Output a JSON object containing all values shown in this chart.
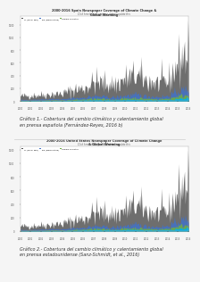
{
  "title1_line1": "2000-2016 Spain Newspaper Coverage of Climate Change &",
  "title1_line2": "Global Warming",
  "subtitle1": "Click here to load your own data to update this",
  "caption1": "Gráfico 1.- Cobertura del cambio climático y calentamiento global\nen prensa española (Fernández-Reyes, 2016 b)",
  "title2_line1": "2000-2016 United States Newspaper Coverage of Climate Change",
  "title2_line2": "& Global Warming",
  "subtitle2": "Click here to load your own data to update this",
  "caption2": "Gráfico 2.- Cobertura del cambio climático y calentamiento global\nen prensa estadounidense (Sanz-Schmidt, et al., 2016)",
  "bg_color": "#f0f0f0",
  "chart_bg": "#ffffff",
  "colors": {
    "black": "#222222",
    "blue": "#4472c4",
    "green": "#70ad47",
    "cyan": "#00b0f0",
    "yellow": "#ffd700",
    "red": "#ff0000"
  },
  "years": [
    2000,
    2001,
    2002,
    2003,
    2004,
    2005,
    2006,
    2007,
    2008,
    2009,
    2010,
    2011,
    2012,
    2013,
    2014,
    2015,
    2016
  ],
  "chart1_black": [
    80,
    90,
    100,
    110,
    120,
    180,
    200,
    300,
    280,
    260,
    350,
    400,
    320,
    280,
    300,
    600,
    800
  ],
  "chart1_blue": [
    20,
    25,
    30,
    35,
    30,
    50,
    60,
    80,
    70,
    60,
    90,
    100,
    80,
    70,
    80,
    150,
    200
  ],
  "chart1_green": [
    10,
    12,
    15,
    18,
    15,
    25,
    30,
    40,
    35,
    30,
    45,
    50,
    40,
    35,
    40,
    80,
    100
  ],
  "chart1_cyan": [
    5,
    6,
    7,
    8,
    7,
    12,
    15,
    20,
    18,
    15,
    22,
    25,
    20,
    18,
    20,
    40,
    50
  ],
  "chart2_black": [
    70,
    80,
    90,
    100,
    110,
    160,
    180,
    280,
    260,
    240,
    320,
    380,
    300,
    260,
    280,
    560,
    750
  ],
  "chart2_blue": [
    18,
    22,
    27,
    32,
    27,
    45,
    55,
    75,
    65,
    55,
    85,
    95,
    75,
    65,
    75,
    140,
    190
  ],
  "chart2_green": [
    8,
    10,
    12,
    15,
    12,
    22,
    27,
    37,
    32,
    27,
    42,
    47,
    37,
    32,
    37,
    75,
    95
  ],
  "chart2_cyan": [
    4,
    5,
    6,
    7,
    6,
    11,
    14,
    19,
    17,
    14,
    21,
    24,
    19,
    17,
    19,
    38,
    48
  ]
}
